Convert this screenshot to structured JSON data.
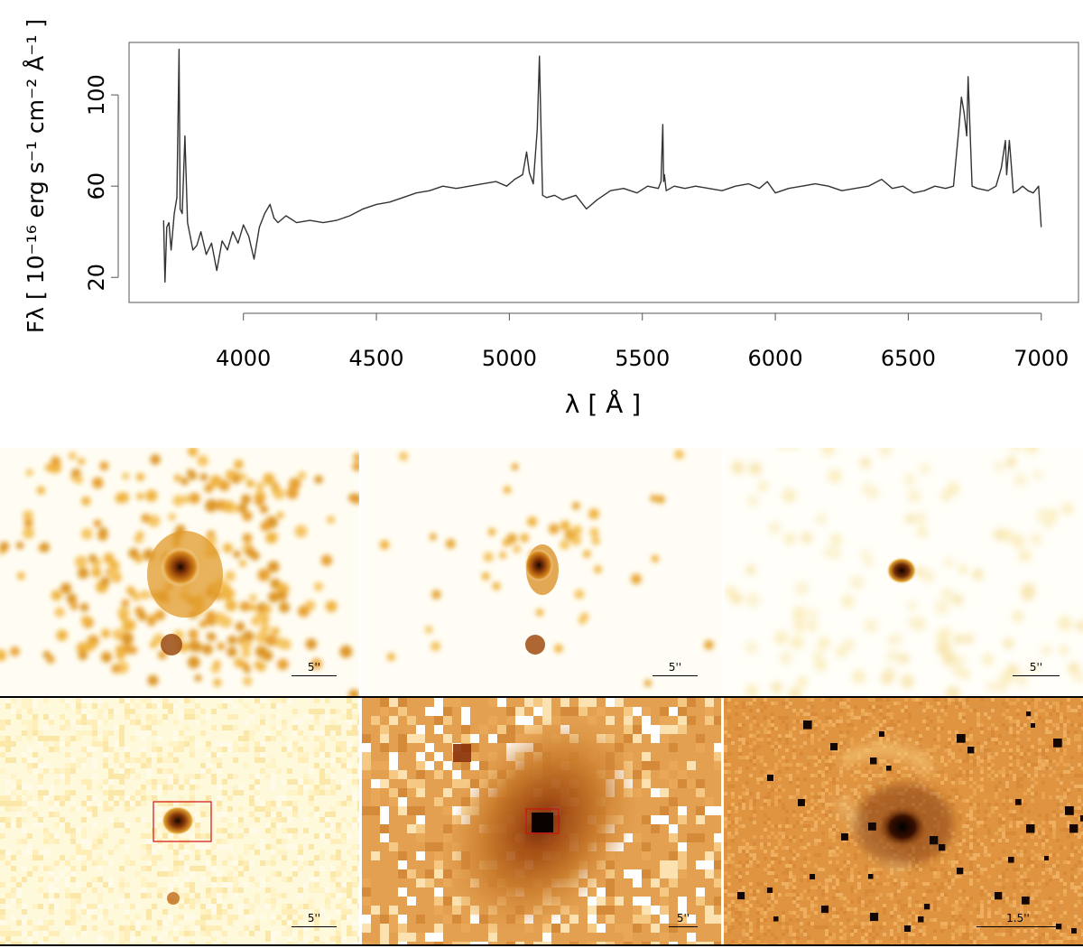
{
  "chart_data": [
    {
      "type": "line",
      "title": "",
      "xlabel": "λ [ Å ]",
      "ylabel": "Fλ [ 10⁻¹⁶ erg s⁻¹ cm⁻² Å⁻¹ ]",
      "xlim": [
        3570,
        7140
      ],
      "ylim": [
        9,
        123
      ],
      "xticks": [
        "4000",
        "4500",
        "5000",
        "5500",
        "6000",
        "6500",
        "7000"
      ],
      "yticks": [
        "20",
        "60",
        "100"
      ],
      "grid": false,
      "series": [
        {
          "color": "#333333",
          "x": [
            3700,
            3705,
            3712,
            3720,
            3728,
            3740,
            3750,
            3758,
            3762,
            3770,
            3780,
            3790,
            3800,
            3810,
            3825,
            3840,
            3860,
            3880,
            3900,
            3920,
            3940,
            3960,
            3980,
            4000,
            4020,
            4040,
            4060,
            4080,
            4100,
            4115,
            4130,
            4160,
            4200,
            4250,
            4300,
            4350,
            4400,
            4450,
            4500,
            4550,
            4600,
            4650,
            4700,
            4750,
            4800,
            4850,
            4900,
            4950,
            4990,
            5020,
            5050,
            5065,
            5075,
            5090,
            5105,
            5113,
            5118,
            5125,
            5140,
            5170,
            5200,
            5250,
            5290,
            5330,
            5380,
            5430,
            5480,
            5520,
            5560,
            5570,
            5577,
            5580,
            5583,
            5590,
            5620,
            5660,
            5700,
            5750,
            5800,
            5850,
            5900,
            5940,
            5970,
            6000,
            6050,
            6100,
            6150,
            6200,
            6250,
            6300,
            6350,
            6400,
            6440,
            6480,
            6520,
            6560,
            6600,
            6640,
            6670,
            6690,
            6700,
            6710,
            6720,
            6725,
            6732,
            6740,
            6760,
            6800,
            6830,
            6850,
            6865,
            6870,
            6880,
            6887,
            6895,
            6910,
            6930,
            6950,
            6970,
            6990,
            7000
          ],
          "values": [
            45,
            18,
            42,
            44,
            32,
            48,
            55,
            120,
            50,
            48,
            82,
            44,
            38,
            32,
            34,
            40,
            30,
            35,
            23,
            36,
            32,
            40,
            35,
            43,
            38,
            28,
            42,
            48,
            52,
            46,
            44,
            47,
            44,
            45,
            44,
            45,
            47,
            50,
            52,
            53,
            55,
            57,
            58,
            60,
            59,
            60,
            61,
            62,
            60,
            63,
            65,
            75,
            66,
            61,
            85,
            117,
            90,
            56,
            55,
            56,
            54,
            56,
            50,
            54,
            58,
            59,
            57,
            60,
            59,
            62,
            87,
            62,
            65,
            58,
            60,
            59,
            60,
            59,
            58,
            60,
            61,
            59,
            62,
            57,
            59,
            60,
            61,
            60,
            58,
            59,
            60,
            63,
            59,
            60,
            57,
            58,
            60,
            59,
            60,
            85,
            99,
            92,
            82,
            108,
            85,
            60,
            59,
            58,
            60,
            68,
            80,
            65,
            80,
            70,
            57,
            58,
            60,
            58,
            57,
            60,
            42
          ]
        }
      ]
    },
    {
      "type": "heatmap",
      "panels": [
        {
          "scalebar": "5''"
        },
        {
          "scalebar": "5''"
        },
        {
          "scalebar": "5''"
        },
        {
          "scalebar": "5''"
        },
        {
          "scalebar": "5''"
        },
        {
          "scalebar": "1.5''"
        }
      ]
    }
  ]
}
